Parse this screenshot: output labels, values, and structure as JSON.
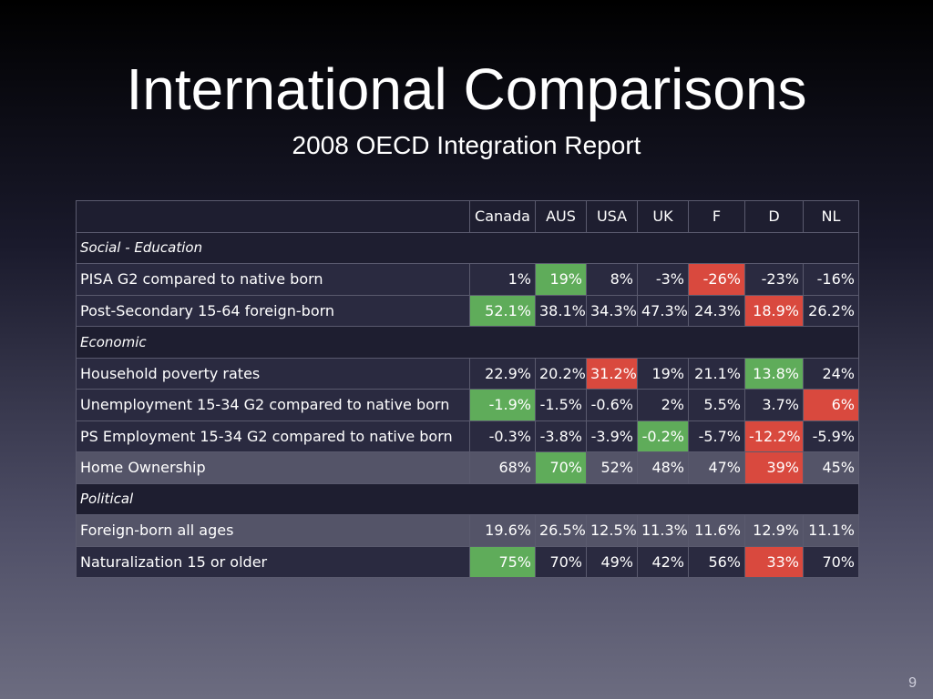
{
  "slide": {
    "title": "International Comparisons",
    "subtitle": "2008 OECD Integration Report",
    "page_number": "9"
  },
  "colors": {
    "good": "#5fac5a",
    "bad": "#d9493e"
  },
  "table": {
    "columns": [
      "Canada",
      "AUS",
      "USA",
      "UK",
      "F",
      "D",
      "NL"
    ],
    "rows": [
      {
        "kind": "section",
        "label": "Social - Education"
      },
      {
        "kind": "data",
        "tone": "dark",
        "label": "PISA G2 compared to native born",
        "values": [
          "1%",
          "19%",
          "8%",
          "-3%",
          "-26%",
          "-23%",
          "-16%"
        ],
        "highlight": [
          "",
          "good",
          "",
          "",
          "bad",
          "",
          ""
        ]
      },
      {
        "kind": "data",
        "tone": "dark",
        "label": "Post-Secondary 15-64 foreign-born",
        "values": [
          "52.1%",
          "38.1%",
          "34.3%",
          "47.3%",
          "24.3%",
          "18.9%",
          "26.2%"
        ],
        "highlight": [
          "good",
          "",
          "",
          "",
          "",
          "bad",
          ""
        ]
      },
      {
        "kind": "section",
        "label": "Economic"
      },
      {
        "kind": "data",
        "tone": "dark",
        "label": "Household poverty rates",
        "values": [
          "22.9%",
          "20.2%",
          "31.2%",
          "19%",
          "21.1%",
          "13.8%",
          "24%"
        ],
        "highlight": [
          "",
          "",
          "bad",
          "",
          "",
          "good",
          ""
        ]
      },
      {
        "kind": "data",
        "tone": "dark",
        "label": "Unemployment 15-34 G2 compared to native born",
        "values": [
          "-1.9%",
          "-1.5%",
          "-0.6%",
          "2%",
          "5.5%",
          "3.7%",
          "6%"
        ],
        "highlight": [
          "good",
          "",
          "",
          "",
          "",
          "",
          "bad"
        ]
      },
      {
        "kind": "data",
        "tone": "dark",
        "label": "PS Employment 15-34 G2 compared to native born",
        "values": [
          "-0.3%",
          "-3.8%",
          "-3.9%",
          "-0.2%",
          "-5.7%",
          "-12.2%",
          "-5.9%"
        ],
        "highlight": [
          "",
          "",
          "",
          "good",
          "",
          "bad",
          ""
        ]
      },
      {
        "kind": "data",
        "tone": "light",
        "label": "Home Ownership",
        "values": [
          "68%",
          "70%",
          "52%",
          "48%",
          "47%",
          "39%",
          "45%"
        ],
        "highlight": [
          "",
          "good",
          "",
          "",
          "",
          "bad",
          ""
        ]
      },
      {
        "kind": "section",
        "label": "Political"
      },
      {
        "kind": "data",
        "tone": "light",
        "label": "Foreign-born all ages",
        "values": [
          "19.6%",
          "26.5%",
          "12.5%",
          "11.3%",
          "11.6%",
          "12.9%",
          "11.1%"
        ],
        "highlight": [
          "",
          "",
          "",
          "",
          "",
          "",
          ""
        ]
      },
      {
        "kind": "data",
        "tone": "dark",
        "label": "Naturalization 15 or older",
        "values": [
          "75%",
          "70%",
          "49%",
          "42%",
          "56%",
          "33%",
          "70%"
        ],
        "highlight": [
          "good",
          "",
          "",
          "",
          "",
          "bad",
          ""
        ]
      }
    ]
  }
}
